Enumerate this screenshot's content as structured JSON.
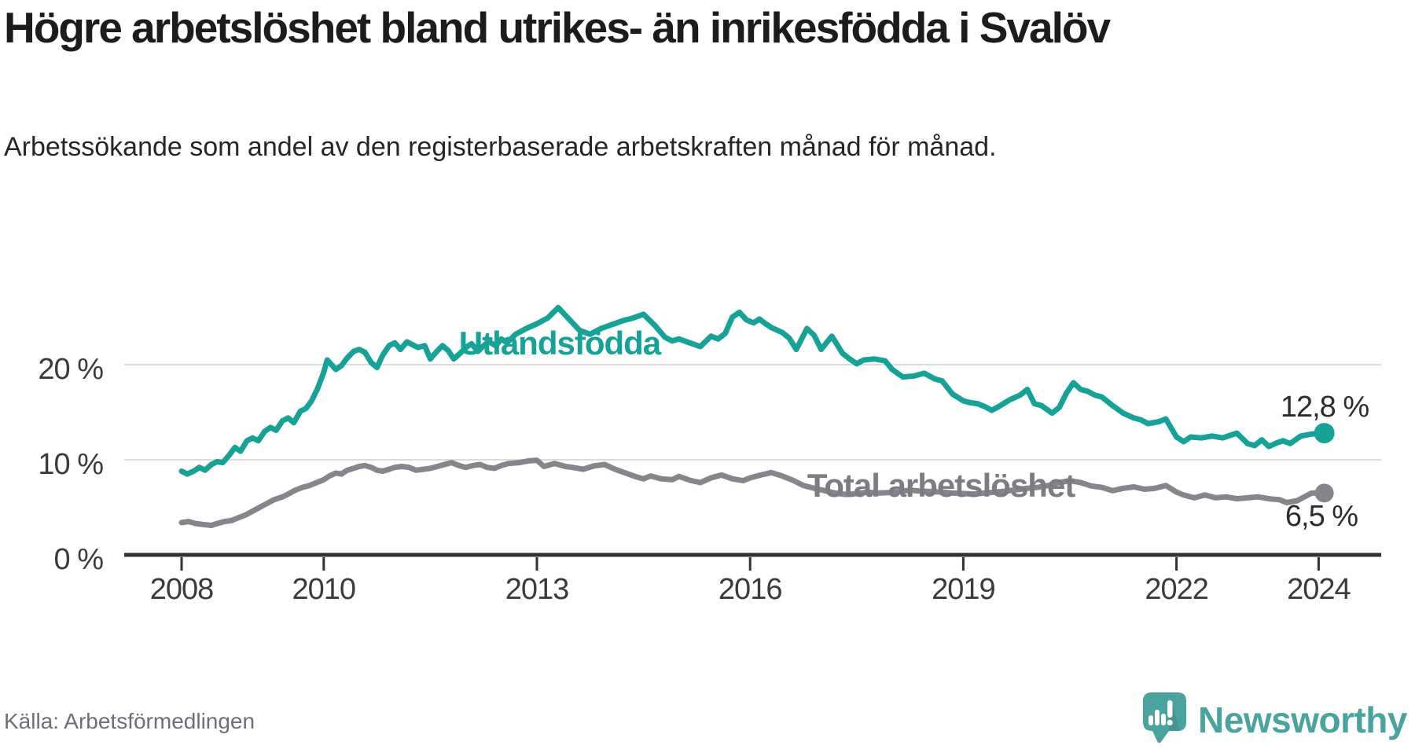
{
  "header": {
    "title": "Högre arbetslöshet bland utrikes- än inrikesfödda i Svalöv",
    "subtitle": "Arbetssökande som andel av den registerbaserade arbetskraften månad för månad."
  },
  "footer": {
    "source": "Källa: Arbetsförmedlingen",
    "brand": "Newsworthy"
  },
  "colors": {
    "accent_teal": "#16a296",
    "line_gray": "#85858b",
    "label_gray": "#7c7c83",
    "grid": "#dcdcdc",
    "axis": "#323232",
    "value_text": "#2d2d2d",
    "brand_teal": "#4aa49e",
    "brand_shadow": "#3d8d87"
  },
  "chart_data": {
    "type": "line",
    "title": "Högre arbetslöshet bland utrikes- än inrikesfödda i Svalöv",
    "subtitle": "Arbetssökande som andel av den registerbaserade arbetskraften månad för månad.",
    "xlabel": "",
    "ylabel": "",
    "x_range": [
      2008,
      2024.3
    ],
    "ylim": [
      0,
      28
    ],
    "grid": true,
    "x_axis": {
      "ticks": [
        {
          "value": 2008,
          "label": "2008"
        },
        {
          "value": 2010,
          "label": "2010"
        },
        {
          "value": 2013,
          "label": "2013"
        },
        {
          "value": 2016,
          "label": "2016"
        },
        {
          "value": 2019,
          "label": "2019"
        },
        {
          "value": 2022,
          "label": "2022"
        },
        {
          "value": 2024,
          "label": "2024"
        }
      ]
    },
    "y_axis": {
      "ticks": [
        {
          "value": 0,
          "label": "0 %"
        },
        {
          "value": 10,
          "label": "10 %"
        },
        {
          "value": 20,
          "label": "20 %"
        }
      ]
    },
    "series": [
      {
        "name": "Utlandsfödda",
        "color": "#16a296",
        "end_label": "12,8 %",
        "end_value": 12.8,
        "points": [
          [
            2008.0,
            8.8
          ],
          [
            2008.08,
            8.5
          ],
          [
            2008.17,
            8.8
          ],
          [
            2008.25,
            9.2
          ],
          [
            2008.33,
            8.9
          ],
          [
            2008.42,
            9.5
          ],
          [
            2008.5,
            9.8
          ],
          [
            2008.58,
            9.7
          ],
          [
            2008.67,
            10.5
          ],
          [
            2008.75,
            11.3
          ],
          [
            2008.83,
            10.9
          ],
          [
            2008.92,
            12.0
          ],
          [
            2009.0,
            12.3
          ],
          [
            2009.08,
            12.0
          ],
          [
            2009.17,
            13.0
          ],
          [
            2009.25,
            13.4
          ],
          [
            2009.33,
            13.1
          ],
          [
            2009.42,
            14.1
          ],
          [
            2009.5,
            14.4
          ],
          [
            2009.58,
            13.9
          ],
          [
            2009.67,
            15.1
          ],
          [
            2009.75,
            15.4
          ],
          [
            2009.83,
            16.2
          ],
          [
            2009.92,
            17.6
          ],
          [
            2010.0,
            19.2
          ],
          [
            2010.05,
            20.5
          ],
          [
            2010.17,
            19.5
          ],
          [
            2010.25,
            19.9
          ],
          [
            2010.33,
            20.7
          ],
          [
            2010.42,
            21.4
          ],
          [
            2010.5,
            21.6
          ],
          [
            2010.58,
            21.3
          ],
          [
            2010.67,
            20.2
          ],
          [
            2010.75,
            19.7
          ],
          [
            2010.83,
            21.0
          ],
          [
            2010.92,
            22.0
          ],
          [
            2011.0,
            22.3
          ],
          [
            2011.08,
            21.6
          ],
          [
            2011.17,
            22.4
          ],
          [
            2011.25,
            22.1
          ],
          [
            2011.33,
            21.8
          ],
          [
            2011.42,
            22.0
          ],
          [
            2011.5,
            20.6
          ],
          [
            2011.58,
            21.3
          ],
          [
            2011.67,
            22.0
          ],
          [
            2011.75,
            21.5
          ],
          [
            2011.83,
            20.6
          ],
          [
            2011.92,
            21.2
          ],
          [
            2012.0,
            21.8
          ],
          [
            2012.08,
            22.2
          ],
          [
            2012.17,
            21.4
          ],
          [
            2012.25,
            22.0
          ],
          [
            2012.33,
            22.4
          ],
          [
            2012.42,
            22.0
          ],
          [
            2012.5,
            22.7
          ],
          [
            2012.58,
            22.3
          ],
          [
            2012.7,
            23.2
          ],
          [
            2012.85,
            23.8
          ],
          [
            2013.0,
            24.3
          ],
          [
            2013.15,
            24.9
          ],
          [
            2013.3,
            26.0
          ],
          [
            2013.45,
            24.8
          ],
          [
            2013.6,
            23.6
          ],
          [
            2013.75,
            23.2
          ],
          [
            2013.9,
            23.8
          ],
          [
            2014.05,
            24.2
          ],
          [
            2014.2,
            24.6
          ],
          [
            2014.35,
            24.9
          ],
          [
            2014.5,
            25.3
          ],
          [
            2014.65,
            24.2
          ],
          [
            2014.8,
            22.9
          ],
          [
            2014.9,
            22.5
          ],
          [
            2015.0,
            22.7
          ],
          [
            2015.15,
            22.3
          ],
          [
            2015.3,
            21.9
          ],
          [
            2015.45,
            23.0
          ],
          [
            2015.55,
            22.7
          ],
          [
            2015.65,
            23.3
          ],
          [
            2015.75,
            25.0
          ],
          [
            2015.85,
            25.5
          ],
          [
            2015.95,
            24.7
          ],
          [
            2016.05,
            24.4
          ],
          [
            2016.13,
            24.8
          ],
          [
            2016.2,
            24.4
          ],
          [
            2016.3,
            23.9
          ],
          [
            2016.45,
            23.4
          ],
          [
            2016.55,
            22.8
          ],
          [
            2016.65,
            21.6
          ],
          [
            2016.8,
            23.8
          ],
          [
            2016.9,
            23.1
          ],
          [
            2017.0,
            21.6
          ],
          [
            2017.15,
            23.0
          ],
          [
            2017.3,
            21.2
          ],
          [
            2017.4,
            20.6
          ],
          [
            2017.5,
            20.1
          ],
          [
            2017.6,
            20.5
          ],
          [
            2017.75,
            20.6
          ],
          [
            2017.9,
            20.4
          ],
          [
            2018.0,
            19.5
          ],
          [
            2018.15,
            18.7
          ],
          [
            2018.3,
            18.8
          ],
          [
            2018.45,
            19.1
          ],
          [
            2018.6,
            18.5
          ],
          [
            2018.7,
            18.3
          ],
          [
            2018.85,
            16.9
          ],
          [
            2019.0,
            16.2
          ],
          [
            2019.1,
            16.0
          ],
          [
            2019.2,
            15.9
          ],
          [
            2019.3,
            15.6
          ],
          [
            2019.4,
            15.2
          ],
          [
            2019.5,
            15.6
          ],
          [
            2019.65,
            16.3
          ],
          [
            2019.8,
            16.8
          ],
          [
            2019.9,
            17.4
          ],
          [
            2020.0,
            15.9
          ],
          [
            2020.1,
            15.7
          ],
          [
            2020.25,
            14.9
          ],
          [
            2020.35,
            15.5
          ],
          [
            2020.45,
            17.0
          ],
          [
            2020.55,
            18.1
          ],
          [
            2020.65,
            17.4
          ],
          [
            2020.75,
            17.2
          ],
          [
            2020.85,
            16.8
          ],
          [
            2020.95,
            16.6
          ],
          [
            2021.1,
            15.7
          ],
          [
            2021.25,
            14.9
          ],
          [
            2021.4,
            14.4
          ],
          [
            2021.5,
            14.2
          ],
          [
            2021.6,
            13.8
          ],
          [
            2021.75,
            14.0
          ],
          [
            2021.85,
            14.3
          ],
          [
            2022.0,
            12.4
          ],
          [
            2022.1,
            11.9
          ],
          [
            2022.2,
            12.4
          ],
          [
            2022.35,
            12.3
          ],
          [
            2022.5,
            12.5
          ],
          [
            2022.65,
            12.3
          ],
          [
            2022.85,
            12.8
          ],
          [
            2023.0,
            11.7
          ],
          [
            2023.1,
            11.5
          ],
          [
            2023.2,
            12.1
          ],
          [
            2023.3,
            11.4
          ],
          [
            2023.42,
            11.8
          ],
          [
            2023.5,
            12.0
          ],
          [
            2023.6,
            11.7
          ],
          [
            2023.75,
            12.5
          ],
          [
            2023.9,
            12.7
          ],
          [
            2024.08,
            12.8
          ]
        ]
      },
      {
        "name": "Total arbetslöshet",
        "color": "#85858b",
        "end_label": "6,5 %",
        "end_value": 6.5,
        "points": [
          [
            2008.0,
            3.4
          ],
          [
            2008.1,
            3.5
          ],
          [
            2008.2,
            3.3
          ],
          [
            2008.3,
            3.2
          ],
          [
            2008.42,
            3.1
          ],
          [
            2008.5,
            3.3
          ],
          [
            2008.6,
            3.5
          ],
          [
            2008.7,
            3.6
          ],
          [
            2008.8,
            3.9
          ],
          [
            2008.9,
            4.2
          ],
          [
            2009.0,
            4.6
          ],
          [
            2009.1,
            5.0
          ],
          [
            2009.2,
            5.4
          ],
          [
            2009.3,
            5.8
          ],
          [
            2009.42,
            6.1
          ],
          [
            2009.5,
            6.4
          ],
          [
            2009.6,
            6.8
          ],
          [
            2009.7,
            7.1
          ],
          [
            2009.8,
            7.3
          ],
          [
            2009.9,
            7.6
          ],
          [
            2010.0,
            7.9
          ],
          [
            2010.08,
            8.3
          ],
          [
            2010.17,
            8.6
          ],
          [
            2010.25,
            8.5
          ],
          [
            2010.33,
            8.9
          ],
          [
            2010.42,
            9.1
          ],
          [
            2010.5,
            9.3
          ],
          [
            2010.58,
            9.4
          ],
          [
            2010.67,
            9.2
          ],
          [
            2010.75,
            8.9
          ],
          [
            2010.83,
            8.8
          ],
          [
            2010.92,
            9.0
          ],
          [
            2011.0,
            9.2
          ],
          [
            2011.1,
            9.3
          ],
          [
            2011.2,
            9.2
          ],
          [
            2011.3,
            8.9
          ],
          [
            2011.4,
            9.0
          ],
          [
            2011.5,
            9.1
          ],
          [
            2011.6,
            9.3
          ],
          [
            2011.7,
            9.5
          ],
          [
            2011.8,
            9.7
          ],
          [
            2011.9,
            9.4
          ],
          [
            2012.0,
            9.2
          ],
          [
            2012.1,
            9.4
          ],
          [
            2012.2,
            9.5
          ],
          [
            2012.3,
            9.2
          ],
          [
            2012.4,
            9.1
          ],
          [
            2012.5,
            9.4
          ],
          [
            2012.6,
            9.6
          ],
          [
            2012.75,
            9.7
          ],
          [
            2012.9,
            9.9
          ],
          [
            2013.0,
            9.95
          ],
          [
            2013.1,
            9.3
          ],
          [
            2013.25,
            9.6
          ],
          [
            2013.4,
            9.3
          ],
          [
            2013.5,
            9.2
          ],
          [
            2013.65,
            9.0
          ],
          [
            2013.8,
            9.35
          ],
          [
            2013.95,
            9.5
          ],
          [
            2014.1,
            9.0
          ],
          [
            2014.25,
            8.6
          ],
          [
            2014.4,
            8.2
          ],
          [
            2014.5,
            8.0
          ],
          [
            2014.6,
            8.3
          ],
          [
            2014.75,
            8.0
          ],
          [
            2014.9,
            7.9
          ],
          [
            2015.0,
            8.25
          ],
          [
            2015.15,
            7.85
          ],
          [
            2015.3,
            7.6
          ],
          [
            2015.45,
            8.1
          ],
          [
            2015.6,
            8.4
          ],
          [
            2015.75,
            8.0
          ],
          [
            2015.9,
            7.8
          ],
          [
            2016.0,
            8.1
          ],
          [
            2016.15,
            8.4
          ],
          [
            2016.3,
            8.65
          ],
          [
            2016.45,
            8.3
          ],
          [
            2016.6,
            7.85
          ],
          [
            2016.75,
            7.3
          ],
          [
            2016.9,
            7.0
          ],
          [
            2017.05,
            6.75
          ],
          [
            2017.2,
            6.5
          ],
          [
            2017.35,
            6.35
          ],
          [
            2017.5,
            6.45
          ],
          [
            2017.65,
            6.6
          ],
          [
            2017.8,
            6.5
          ],
          [
            2017.95,
            6.55
          ],
          [
            2018.1,
            6.65
          ],
          [
            2018.25,
            6.8
          ],
          [
            2018.4,
            6.7
          ],
          [
            2018.55,
            6.65
          ],
          [
            2018.7,
            6.6
          ],
          [
            2018.85,
            6.5
          ],
          [
            2019.0,
            6.45
          ],
          [
            2019.15,
            6.4
          ],
          [
            2019.3,
            6.5
          ],
          [
            2019.45,
            6.6
          ],
          [
            2019.6,
            6.7
          ],
          [
            2019.75,
            6.85
          ],
          [
            2019.9,
            7.0
          ],
          [
            2020.05,
            7.1
          ],
          [
            2020.2,
            7.3
          ],
          [
            2020.35,
            7.6
          ],
          [
            2020.5,
            7.8
          ],
          [
            2020.65,
            7.6
          ],
          [
            2020.8,
            7.25
          ],
          [
            2020.95,
            7.1
          ],
          [
            2021.1,
            6.75
          ],
          [
            2021.25,
            7.0
          ],
          [
            2021.4,
            7.15
          ],
          [
            2021.55,
            6.9
          ],
          [
            2021.7,
            7.0
          ],
          [
            2021.85,
            7.3
          ],
          [
            2022.0,
            6.6
          ],
          [
            2022.1,
            6.3
          ],
          [
            2022.25,
            6.0
          ],
          [
            2022.4,
            6.3
          ],
          [
            2022.55,
            6.0
          ],
          [
            2022.7,
            6.1
          ],
          [
            2022.85,
            5.9
          ],
          [
            2023.0,
            6.0
          ],
          [
            2023.15,
            6.1
          ],
          [
            2023.3,
            5.9
          ],
          [
            2023.45,
            5.8
          ],
          [
            2023.55,
            5.5
          ],
          [
            2023.7,
            5.7
          ],
          [
            2023.8,
            6.1
          ],
          [
            2023.9,
            6.5
          ],
          [
            2024.08,
            6.5
          ]
        ]
      }
    ],
    "legend_position": "inline-labels"
  }
}
